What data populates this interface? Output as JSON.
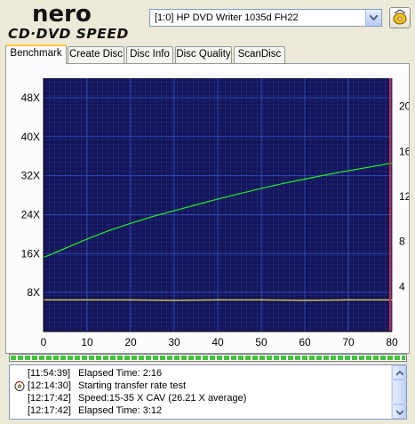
{
  "app": {
    "logo_top": "nero",
    "logo_bottom": "CD·DVD SPEED"
  },
  "drive": {
    "selected": "[1:0]   HP DVD Writer 1035d FH22"
  },
  "tabs": [
    {
      "label": "Benchmark",
      "active": true
    },
    {
      "label": "Create Disc"
    },
    {
      "label": "Disc Info"
    },
    {
      "label": "Disc Quality"
    },
    {
      "label": "ScanDisc"
    }
  ],
  "chart_data": {
    "type": "line",
    "x_ticks": [
      "0",
      "10",
      "20",
      "30",
      "40",
      "50",
      "60",
      "70",
      "80"
    ],
    "left_ticks": [
      "48X",
      "40X",
      "32X",
      "24X",
      "16X",
      "8X"
    ],
    "right_ticks": [
      "20",
      "16",
      "12",
      "8",
      "4"
    ],
    "xlim": [
      0,
      80
    ],
    "ylim_left": [
      0,
      52
    ],
    "ylim_right": [
      0,
      22.5
    ],
    "grid": true,
    "colors": {
      "background": "#15155a",
      "grid": "#2f45b0",
      "transfer": "#22ee22",
      "rpm": "#f0e040",
      "marker": "#c03030"
    },
    "series": [
      {
        "key": "transfer",
        "x": [
          0,
          5,
          10,
          15,
          20,
          25,
          30,
          35,
          40,
          45,
          50,
          55,
          60,
          65,
          70,
          75,
          80
        ],
        "y": [
          15.2,
          17.1,
          19.0,
          20.7,
          22.2,
          23.6,
          24.8,
          26.0,
          27.2,
          28.3,
          29.4,
          30.4,
          31.3,
          32.2,
          33.0,
          33.8,
          34.6
        ]
      },
      {
        "key": "rpm",
        "x": [
          0,
          10,
          20,
          30,
          40,
          50,
          60,
          70,
          80
        ],
        "y": [
          6.5,
          6.5,
          6.5,
          6.4,
          6.5,
          6.5,
          6.4,
          6.5,
          6.5
        ]
      }
    ]
  },
  "progress": {
    "value": 1.0
  },
  "log": [
    {
      "time": "[11:54:39]",
      "message": "Elapsed Time:  2:16",
      "icon": ""
    },
    {
      "time": "[12:14:30]",
      "message": "Starting transfer rate test",
      "icon": "disc-icon"
    },
    {
      "time": "[12:17:42]",
      "message": "Speed:15-35 X CAV (26.21 X average)",
      "icon": ""
    },
    {
      "time": "[12:17:42]",
      "message": "Elapsed Time:  3:12",
      "icon": ""
    }
  ]
}
